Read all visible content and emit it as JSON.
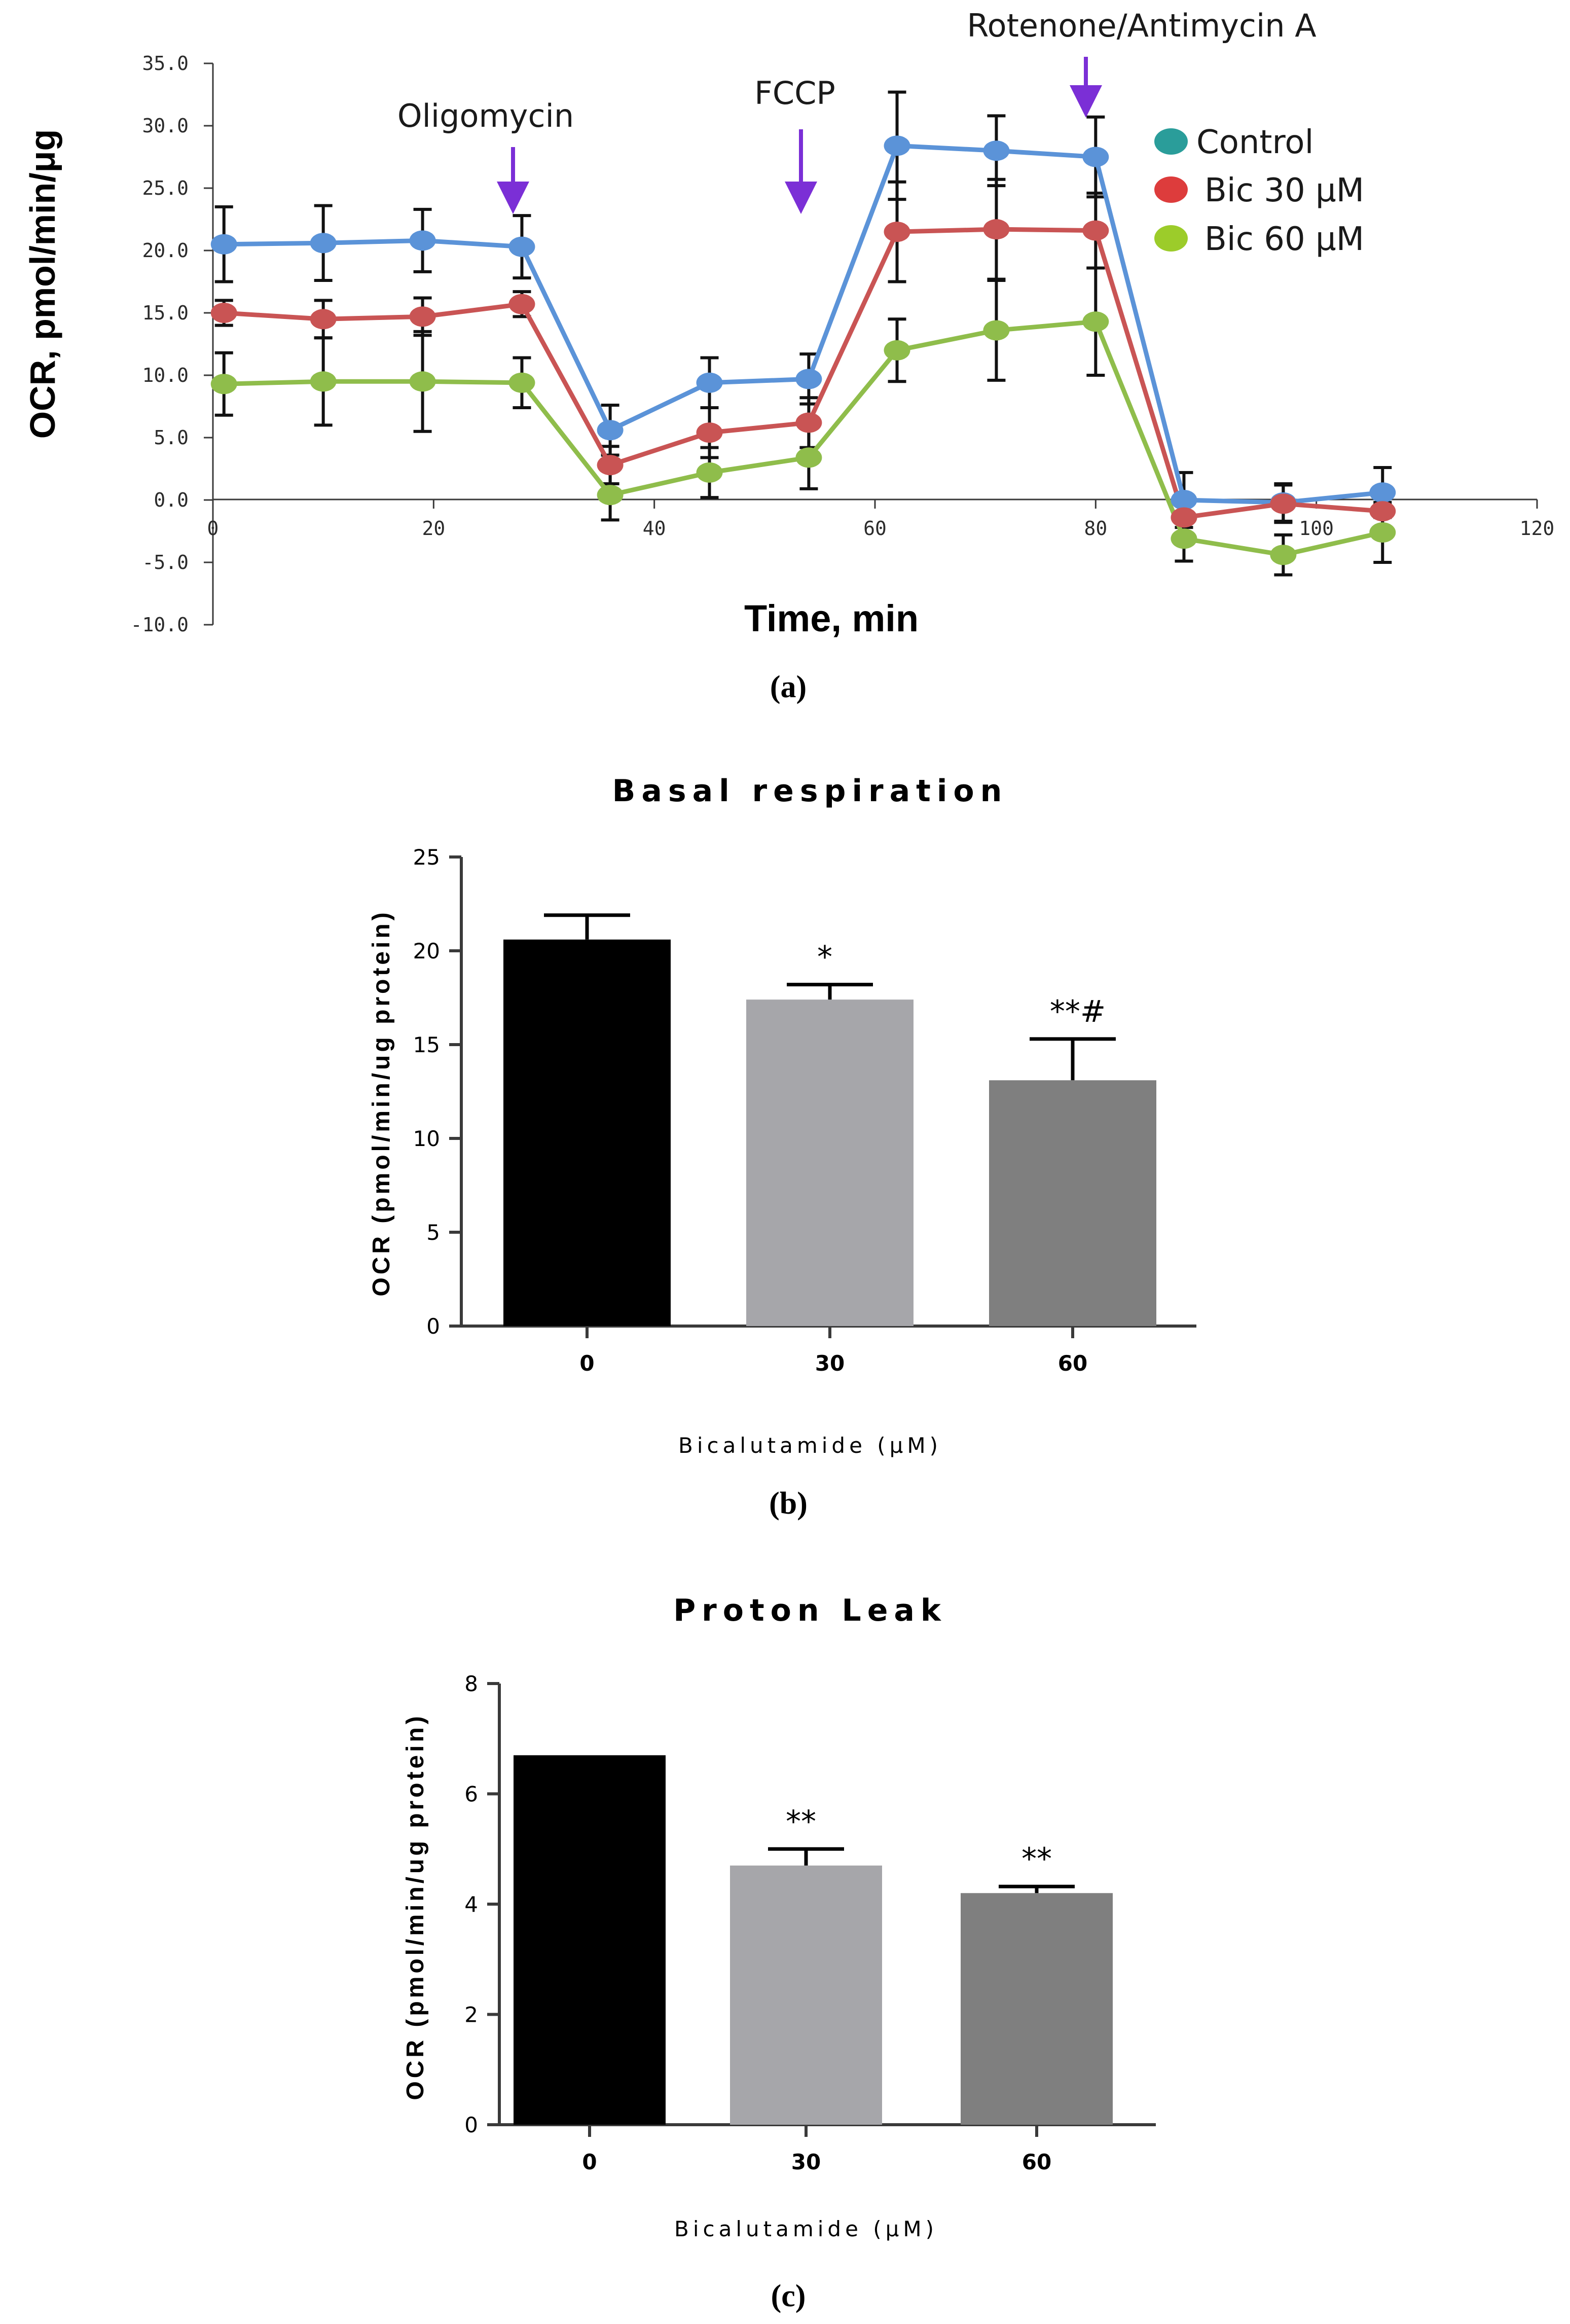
{
  "chart_data": [
    {
      "id": "a",
      "type": "line",
      "panel_label": "(a)",
      "xlabel": "Time, min",
      "ylabel": "OCR, pmol/min/μg",
      "xlim": [
        0,
        120
      ],
      "ylim": [
        -10,
        35
      ],
      "x_ticks": [
        "0",
        "20",
        "40",
        "60",
        "80",
        "100",
        "120"
      ],
      "y_ticks": [
        "35.0",
        "30.0",
        "25.0",
        "20.0",
        "15.0",
        "10.0",
        "5.0",
        "0.0",
        "-5.0",
        "-10.0"
      ],
      "x": [
        1,
        10,
        19,
        28,
        36,
        45,
        54,
        62,
        71,
        80,
        88,
        97,
        106
      ],
      "series": [
        {
          "name": "Control",
          "legend_color": "#2a9d9a",
          "line_color": "#5b93d8",
          "values": [
            20.5,
            20.6,
            20.8,
            20.3,
            5.6,
            9.4,
            9.7,
            28.4,
            28.0,
            27.5,
            0.0,
            -0.2,
            0.6
          ],
          "errors": [
            3.0,
            3.0,
            2.5,
            2.5,
            2.0,
            2.0,
            2.0,
            4.3,
            2.8,
            3.2,
            2.2,
            1.5,
            2.0
          ]
        },
        {
          "name": "Bic 30 μM",
          "legend_color": "#dd3c3c",
          "line_color": "#c95454",
          "values": [
            15.0,
            14.5,
            14.7,
            15.7,
            2.8,
            5.4,
            6.2,
            21.5,
            21.7,
            21.6,
            -1.4,
            -0.3,
            -0.9
          ],
          "errors": [
            1.0,
            1.5,
            1.5,
            1.0,
            1.5,
            2.0,
            2.0,
            4.0,
            4.0,
            3.0,
            1.5,
            1.5,
            1.5
          ]
        },
        {
          "name": "Bic 60 μM",
          "legend_color": "#9ccc2a",
          "line_color": "#8fbd4b",
          "values": [
            9.3,
            9.5,
            9.5,
            9.4,
            0.4,
            2.2,
            3.4,
            12.0,
            13.6,
            14.3,
            -3.1,
            -4.4,
            -2.6
          ],
          "errors": [
            2.5,
            3.5,
            4.0,
            2.0,
            2.0,
            2.0,
            2.5,
            2.5,
            4.0,
            4.3,
            1.8,
            1.6,
            2.4
          ]
        }
      ],
      "annotations": [
        {
          "label": "Oligomycin",
          "x": 28
        },
        {
          "label": "FCCP",
          "x": 54
        },
        {
          "label": "Rotenone/Antimycin A",
          "x": 80
        }
      ]
    },
    {
      "id": "b",
      "type": "bar",
      "panel_label": "(b)",
      "title": "Basal respiration",
      "xlabel": "Bicalutamide (μM)",
      "ylabel": "OCR (pmol/min/ug protein)",
      "ylim": [
        0,
        25
      ],
      "y_ticks": [
        "0",
        "5",
        "10",
        "15",
        "20",
        "25"
      ],
      "categories": [
        "0",
        "30",
        "60"
      ],
      "values": [
        20.6,
        17.4,
        13.1
      ],
      "errors": [
        1.3,
        0.8,
        2.2
      ],
      "colors": [
        "#000000",
        "#a6a6aa",
        "#7f7f7f"
      ],
      "significance": [
        "",
        "*",
        "**#"
      ]
    },
    {
      "id": "c",
      "type": "bar",
      "panel_label": "(c)",
      "title": "Proton Leak",
      "xlabel": "Bicalutamide (μM)",
      "ylabel": "OCR (pmol/min/ug protein)",
      "ylim": [
        0,
        8
      ],
      "y_ticks": [
        "0",
        "2",
        "4",
        "6",
        "8"
      ],
      "categories": [
        "0",
        "30",
        "60"
      ],
      "values": [
        6.7,
        4.7,
        4.2
      ],
      "errors": [
        0.0,
        0.3,
        0.12
      ],
      "colors": [
        "#000000",
        "#a6a6aa",
        "#7f7f7f"
      ],
      "significance": [
        "",
        "**",
        "**"
      ]
    }
  ]
}
